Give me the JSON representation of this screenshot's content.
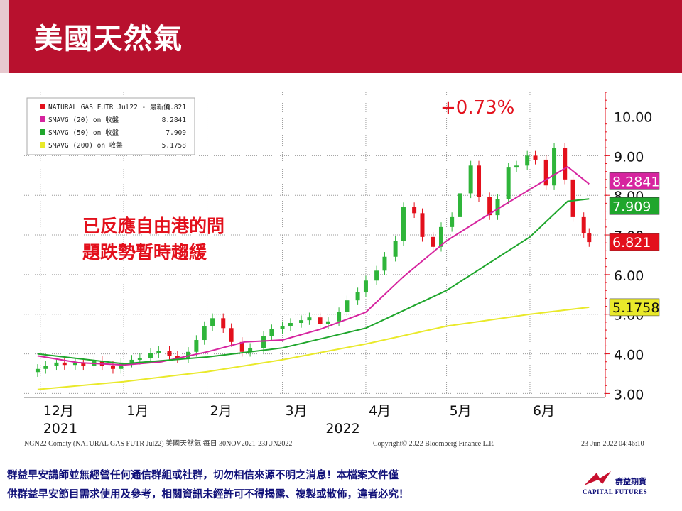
{
  "slide": {
    "title": "美國天然氣",
    "change_annotation": "+0.73%",
    "comment_line1": "已反應自由港的問",
    "comment_line2": "題跌勢暫時趨緩",
    "footer_line1": "群益早安講師並無經營任何通信群組或社群，切勿相信來源不明之消息！本檔案文件僅",
    "footer_line2": "供群益早安節目需求使用及參考，相關資訊未經許可不得揭露、複製或散佈，違者必究！",
    "logo_cn": "群益期貨",
    "logo_en": "CAPITAL FUTURES"
  },
  "colors": {
    "title_bar": "#b8112e",
    "candle_up": "#2fb53a",
    "candle_down": "#e3101c",
    "sma20": "#d6249f",
    "sma50": "#1fa62c",
    "sma200": "#e9e92a",
    "annotation": "#e3101c",
    "footer_text": "#12127a"
  },
  "chart_data": {
    "type": "candlestick",
    "source_line": "NGN22 Comdty (NATURAL GAS FUTR  Jul22) 美國天然氣  每日 30NOV2021-23JUN2022",
    "copyright": "Copyright© 2022 Bloomberg Finance L.P.",
    "timestamp": "23-Jun-2022 04:46:10",
    "legend": [
      {
        "label": "NATURAL GAS FUTR Jul22 - 最新價",
        "value": "6.821",
        "color": "#e3101c"
      },
      {
        "label": "SMAVG (20)  on 收盤",
        "value": "8.2841",
        "color": "#d6249f"
      },
      {
        "label": "SMAVG (50)  on 收盤",
        "value": "7.909",
        "color": "#1fa62c"
      },
      {
        "label": "SMAVG (200)  on 收盤",
        "value": "5.1758",
        "color": "#e9e92a"
      }
    ],
    "y_axis": {
      "ticks": [
        "3.00",
        "4.00",
        "5.00",
        "6.00",
        "7.00",
        "8.00",
        "9.00",
        "10.00"
      ],
      "min": 2.9,
      "max": 10.6
    },
    "x_axis": {
      "month_ticks": [
        {
          "label": "12月",
          "date": "2021-12-01"
        },
        {
          "label": "1月",
          "date": "2022-01-01"
        },
        {
          "label": "2月",
          "date": "2022-02-01"
        },
        {
          "label": "3月",
          "date": "2022-03-01"
        },
        {
          "label": "4月",
          "date": "2022-04-01"
        },
        {
          "label": "5月",
          "date": "2022-05-01"
        },
        {
          "label": "6月",
          "date": "2022-06-01"
        }
      ],
      "year_labels": [
        {
          "label": "2021",
          "date": "2021-12-01"
        },
        {
          "label": "2022",
          "date": "2022-03-16"
        }
      ],
      "range": [
        "2021-11-25",
        "2022-06-29"
      ]
    },
    "last_value_tags": [
      {
        "value": "8.2841",
        "color": "#d6249f"
      },
      {
        "value": "7.909",
        "color": "#1fa62c"
      },
      {
        "value": "6.821",
        "color": "#e3101c"
      },
      {
        "value": "5.1758",
        "color": "#e9e92a"
      }
    ],
    "close_series": [
      [
        "2021-11-30",
        3.62
      ],
      [
        "2021-12-03",
        3.7
      ],
      [
        "2021-12-07",
        3.78
      ],
      [
        "2021-12-10",
        3.72
      ],
      [
        "2021-12-14",
        3.78
      ],
      [
        "2021-12-17",
        3.7
      ],
      [
        "2021-12-21",
        3.82
      ],
      [
        "2021-12-24",
        3.7
      ],
      [
        "2021-12-28",
        3.62
      ],
      [
        "2021-12-31",
        3.78
      ],
      [
        "2022-01-04",
        3.85
      ],
      [
        "2022-01-07",
        3.9
      ],
      [
        "2022-01-11",
        4.02
      ],
      [
        "2022-01-14",
        4.08
      ],
      [
        "2022-01-18",
        3.95
      ],
      [
        "2022-01-21",
        3.88
      ],
      [
        "2022-01-25",
        4.05
      ],
      [
        "2022-01-28",
        4.35
      ],
      [
        "2022-01-31",
        4.7
      ],
      [
        "2022-02-03",
        4.9
      ],
      [
        "2022-02-07",
        4.65
      ],
      [
        "2022-02-10",
        4.3
      ],
      [
        "2022-02-14",
        4.05
      ],
      [
        "2022-02-17",
        4.15
      ],
      [
        "2022-02-22",
        4.45
      ],
      [
        "2022-02-25",
        4.62
      ],
      [
        "2022-03-01",
        4.7
      ],
      [
        "2022-03-04",
        4.78
      ],
      [
        "2022-03-08",
        4.85
      ],
      [
        "2022-03-11",
        4.92
      ],
      [
        "2022-03-15",
        4.75
      ],
      [
        "2022-03-18",
        4.82
      ],
      [
        "2022-03-22",
        5.05
      ],
      [
        "2022-03-25",
        5.35
      ],
      [
        "2022-03-29",
        5.55
      ],
      [
        "2022-04-01",
        5.85
      ],
      [
        "2022-04-05",
        6.1
      ],
      [
        "2022-04-08",
        6.45
      ],
      [
        "2022-04-12",
        6.85
      ],
      [
        "2022-04-15",
        7.7
      ],
      [
        "2022-04-19",
        7.55
      ],
      [
        "2022-04-22",
        6.95
      ],
      [
        "2022-04-26",
        6.7
      ],
      [
        "2022-04-29",
        7.2
      ],
      [
        "2022-05-03",
        7.45
      ],
      [
        "2022-05-06",
        8.05
      ],
      [
        "2022-05-10",
        8.75
      ],
      [
        "2022-05-13",
        7.95
      ],
      [
        "2022-05-17",
        7.5
      ],
      [
        "2022-05-20",
        7.9
      ],
      [
        "2022-05-24",
        8.7
      ],
      [
        "2022-05-27",
        8.75
      ],
      [
        "2022-05-31",
        9.0
      ],
      [
        "2022-06-03",
        8.9
      ],
      [
        "2022-06-07",
        8.25
      ],
      [
        "2022-06-10",
        9.2
      ],
      [
        "2022-06-14",
        8.4
      ],
      [
        "2022-06-17",
        7.45
      ],
      [
        "2022-06-21",
        7.05
      ],
      [
        "2022-06-23",
        6.82
      ]
    ],
    "sma20": [
      [
        "2021-11-30",
        3.95
      ],
      [
        "2021-12-15",
        3.78
      ],
      [
        "2022-01-01",
        3.72
      ],
      [
        "2022-01-15",
        3.8
      ],
      [
        "2022-02-01",
        4.05
      ],
      [
        "2022-02-15",
        4.3
      ],
      [
        "2022-03-01",
        4.35
      ],
      [
        "2022-03-15",
        4.62
      ],
      [
        "2022-04-01",
        5.05
      ],
      [
        "2022-04-15",
        5.95
      ],
      [
        "2022-05-01",
        6.85
      ],
      [
        "2022-05-15",
        7.45
      ],
      [
        "2022-06-01",
        8.15
      ],
      [
        "2022-06-15",
        8.72
      ],
      [
        "2022-06-23",
        8.2841
      ]
    ],
    "sma50": [
      [
        "2021-11-30",
        4.0
      ],
      [
        "2022-01-01",
        3.75
      ],
      [
        "2022-02-01",
        3.92
      ],
      [
        "2022-03-01",
        4.15
      ],
      [
        "2022-04-01",
        4.65
      ],
      [
        "2022-05-01",
        5.6
      ],
      [
        "2022-06-01",
        6.95
      ],
      [
        "2022-06-15",
        7.85
      ],
      [
        "2022-06-23",
        7.909
      ]
    ],
    "sma200": [
      [
        "2021-11-30",
        3.1
      ],
      [
        "2022-01-01",
        3.3
      ],
      [
        "2022-02-01",
        3.55
      ],
      [
        "2022-03-01",
        3.85
      ],
      [
        "2022-04-01",
        4.25
      ],
      [
        "2022-05-01",
        4.7
      ],
      [
        "2022-06-01",
        5.0
      ],
      [
        "2022-06-23",
        5.1758
      ]
    ]
  }
}
